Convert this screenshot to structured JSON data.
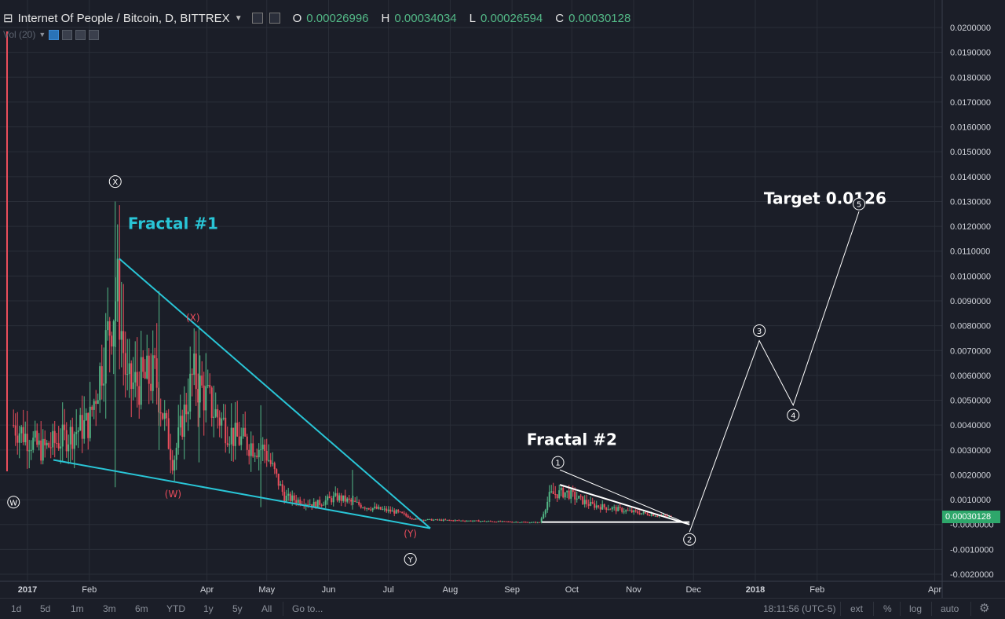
{
  "legend": {
    "title": "Internet Of People / Bitcoin, D, BITTREX",
    "o_label": "O",
    "o_value": "0.00026996",
    "h_label": "H",
    "h_value": "0.00034034",
    "l_label": "L",
    "l_value": "0.00026594",
    "c_label": "C",
    "c_value": "0.00030128"
  },
  "volume_label": "Vol (20)",
  "last_price": "0.00030128",
  "toolbar": {
    "ranges": [
      "1d",
      "5d",
      "1m",
      "3m",
      "6m",
      "YTD",
      "1y",
      "5y",
      "All"
    ],
    "goto": "Go to...",
    "time": "18:11:56 (UTC-5)",
    "ext": "ext",
    "percent": "%",
    "log": "log",
    "auto": "auto"
  },
  "colors": {
    "background": "#1b1e28",
    "grid": "#2a2e38",
    "up": "#53b987",
    "down": "#eb4d5c",
    "cyan_line": "#29c5d6",
    "projection": "#ffffff"
  },
  "chart_data": {
    "type": "candlestick",
    "title": "Internet Of People / Bitcoin, D, BITTREX",
    "x_labels": [
      "2017",
      "Feb",
      "Apr",
      "May",
      "Jun",
      "Jul",
      "Aug",
      "Sep",
      "Oct",
      "Nov",
      "Dec",
      "2018",
      "Feb",
      "Apr"
    ],
    "y_ticks": [
      "0.0200000",
      "0.0190000",
      "0.0180000",
      "0.0170000",
      "0.0160000",
      "0.0150000",
      "0.0140000",
      "0.0130000",
      "0.0120000",
      "0.0110000",
      "0.0100000",
      "0.0090000",
      "0.0080000",
      "0.0070000",
      "0.0060000",
      "0.0050000",
      "0.0040000",
      "0.0030000",
      "0.0020000",
      "0.0010000",
      "-0.0000000",
      "-0.0010000",
      "-0.0020000"
    ],
    "ylim": [
      -0.002,
      0.0205
    ],
    "grid": true,
    "price_path": [
      [
        "2016-12-25",
        0.004
      ],
      [
        "2017-01-08",
        0.003
      ],
      [
        "2017-01-22",
        0.0036
      ],
      [
        "2017-02-01",
        0.0041
      ],
      [
        "2017-02-10",
        0.0075
      ],
      [
        "2017-02-15",
        0.0095
      ],
      [
        "2017-02-20",
        0.0055
      ],
      [
        "2017-03-06",
        0.006
      ],
      [
        "2017-03-15",
        0.0025
      ],
      [
        "2017-03-25",
        0.006
      ],
      [
        "2017-04-05",
        0.0045
      ],
      [
        "2017-04-15",
        0.0035
      ],
      [
        "2017-04-30",
        0.003
      ],
      [
        "2017-05-10",
        0.0011
      ],
      [
        "2017-05-25",
        0.0008
      ],
      [
        "2017-06-05",
        0.0011
      ],
      [
        "2017-06-20",
        0.0007
      ],
      [
        "2017-07-05",
        0.0005
      ],
      [
        "2017-07-15",
        0.0002
      ],
      [
        "2017-09-15",
        8e-05
      ],
      [
        "2017-09-20",
        0.0012
      ],
      [
        "2017-09-28",
        0.0013
      ],
      [
        "2017-10-10",
        0.0008
      ],
      [
        "2017-11-01",
        0.0005
      ],
      [
        "2017-11-20",
        0.0003
      ]
    ],
    "trend_lines": [
      {
        "name": "fractal1-upper",
        "from": [
          "2017-02-16",
          0.0107
        ],
        "to": [
          "2017-07-22",
          -0.00015
        ]
      },
      {
        "name": "fractal1-lower",
        "from": [
          "2017-01-14",
          0.0026
        ],
        "to": [
          "2017-07-22",
          -0.00015
        ]
      },
      {
        "name": "fractal2-upper-outer",
        "from": [
          "2017-09-25",
          0.0022
        ],
        "to": [
          "2017-11-29",
          0.0
        ]
      },
      {
        "name": "fractal2-upper-inner",
        "from": [
          "2017-09-25",
          0.0016
        ],
        "to": [
          "2017-11-29",
          0.0
        ]
      },
      {
        "name": "fractal2-base",
        "from": [
          "2017-09-16",
          0.0001
        ],
        "to": [
          "2017-11-29",
          0.0001
        ]
      }
    ],
    "projection": [
      [
        "2017-11-29",
        -0.0003
      ],
      [
        "2018-01-03",
        0.0074
      ],
      [
        "2018-01-20",
        0.0048
      ],
      [
        "2018-02-22",
        0.0126
      ]
    ],
    "annotations": [
      {
        "text": "Fractal #1",
        "at": [
          "2017-03-15",
          0.0119
        ],
        "color": "#29c5d6",
        "style": "bold"
      },
      {
        "text": "Fractal #2",
        "at": [
          "2017-10-01",
          0.0032
        ],
        "color": "#ffffff",
        "style": "bold"
      },
      {
        "text": "Target 0.0126",
        "at": [
          "2018-02-05",
          0.0129
        ],
        "color": "#ffffff",
        "style": "bold"
      },
      {
        "text": "(X)",
        "at": [
          "2017-03-25",
          0.0082
        ],
        "color": "#eb4d5c"
      },
      {
        "text": "(W)",
        "at": [
          "2017-03-15",
          0.0011
        ],
        "color": "#eb4d5c"
      },
      {
        "text": "(Y)",
        "at": [
          "2017-07-12",
          -0.0005
        ],
        "color": "#eb4d5c"
      }
    ],
    "wave_labels": [
      {
        "text": "W",
        "at": [
          "2016-12-25",
          0.0009
        ]
      },
      {
        "text": "X",
        "at": [
          "2017-02-14",
          0.0138
        ]
      },
      {
        "text": "Y",
        "at": [
          "2017-07-12",
          -0.0014
        ]
      },
      {
        "text": "1",
        "at": [
          "2017-09-24",
          0.0025
        ]
      },
      {
        "text": "2",
        "at": [
          "2017-11-29",
          -0.0006
        ]
      },
      {
        "text": "3",
        "at": [
          "2018-01-03",
          0.0078
        ]
      },
      {
        "text": "4",
        "at": [
          "2018-01-20",
          0.0044
        ]
      },
      {
        "text": "5",
        "at": [
          "2018-02-22",
          0.0129
        ]
      }
    ]
  }
}
